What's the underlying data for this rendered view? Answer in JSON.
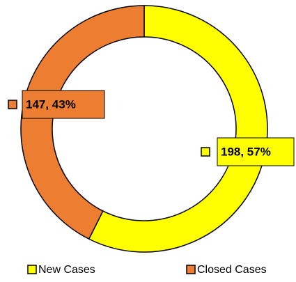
{
  "chart_data": {
    "type": "donut",
    "categories": [
      "New Cases",
      "Closed Cases"
    ],
    "values": [
      198,
      147
    ],
    "value_labels": [
      "198, 57%",
      "147, 43%"
    ],
    "colors": [
      "#ffff00",
      "#ed7d31"
    ],
    "legend": "bottom"
  }
}
